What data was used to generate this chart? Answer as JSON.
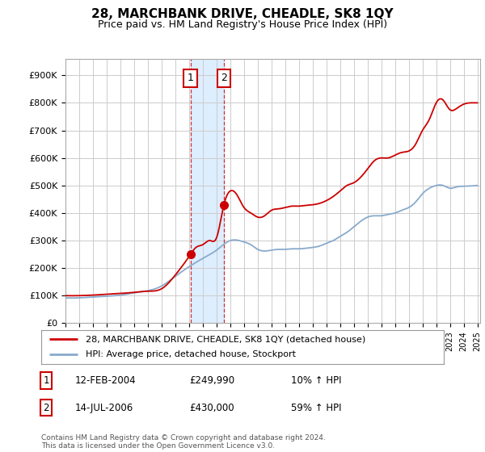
{
  "title": "28, MARCHBANK DRIVE, CHEADLE, SK8 1QY",
  "subtitle": "Price paid vs. HM Land Registry's House Price Index (HPI)",
  "ylabel_ticks": [
    "£0",
    "£100K",
    "£200K",
    "£300K",
    "£400K",
    "£500K",
    "£600K",
    "£700K",
    "£800K",
    "£900K"
  ],
  "ytick_values": [
    0,
    100000,
    200000,
    300000,
    400000,
    500000,
    600000,
    700000,
    800000,
    900000
  ],
  "ylim": [
    0,
    960000
  ],
  "xlim_start": 1995.0,
  "xlim_end": 2025.2,
  "transaction1_x": 2004.11,
  "transaction1_y": 249990,
  "transaction2_x": 2006.54,
  "transaction2_y": 430000,
  "legend_line1": "28, MARCHBANK DRIVE, CHEADLE, SK8 1QY (detached house)",
  "legend_line2": "HPI: Average price, detached house, Stockport",
  "line_color_red": "#cc0000",
  "line_color_blue": "#88aacc",
  "shade_color": "#ddeeff",
  "marker_box_color": "#cc0000",
  "background_color": "#ffffff",
  "grid_color": "#cccccc",
  "red_years": [
    1995,
    1996,
    1997,
    1998,
    1999,
    2000,
    2001,
    2002,
    2003,
    2004.11,
    2004.5,
    2005,
    2005.5,
    2006,
    2006.54,
    2007,
    2007.5,
    2008,
    2008.5,
    2009,
    2009.5,
    2010,
    2010.5,
    2011,
    2011.5,
    2012,
    2012.5,
    2013,
    2013.5,
    2014,
    2014.5,
    2015,
    2015.5,
    2016,
    2016.5,
    2017,
    2017.5,
    2018,
    2018.5,
    2019,
    2019.5,
    2020,
    2020.5,
    2021,
    2021.5,
    2022,
    2022.5,
    2023,
    2023.5,
    2024,
    2024.5,
    2025
  ],
  "red_values": [
    100000,
    100000,
    102000,
    105000,
    108000,
    112000,
    116000,
    125000,
    175000,
    249990,
    275000,
    285000,
    300000,
    310000,
    430000,
    480000,
    465000,
    420000,
    400000,
    385000,
    390000,
    410000,
    415000,
    420000,
    425000,
    425000,
    428000,
    430000,
    435000,
    445000,
    460000,
    480000,
    500000,
    510000,
    530000,
    560000,
    590000,
    600000,
    600000,
    610000,
    620000,
    625000,
    650000,
    700000,
    740000,
    800000,
    810000,
    775000,
    780000,
    795000,
    800000,
    800000
  ],
  "blue_years": [
    1995,
    1996,
    1997,
    1998,
    1999,
    2000,
    2001,
    2002,
    2003,
    2004,
    2005,
    2006,
    2007,
    2008,
    2008.5,
    2009,
    2009.5,
    2010,
    2010.5,
    2011,
    2011.5,
    2012,
    2012.5,
    2013,
    2013.5,
    2014,
    2014.5,
    2015,
    2015.5,
    2016,
    2016.5,
    2017,
    2017.5,
    2018,
    2018.5,
    2019,
    2019.5,
    2020,
    2020.5,
    2021,
    2021.5,
    2022,
    2022.5,
    2023,
    2023.5,
    2024,
    2024.5,
    2025
  ],
  "blue_values": [
    92000,
    92000,
    95000,
    98000,
    102000,
    110000,
    118000,
    135000,
    170000,
    205000,
    235000,
    265000,
    300000,
    295000,
    285000,
    268000,
    262000,
    265000,
    268000,
    268000,
    270000,
    270000,
    272000,
    275000,
    280000,
    290000,
    300000,
    315000,
    330000,
    350000,
    370000,
    385000,
    390000,
    390000,
    395000,
    400000,
    410000,
    420000,
    440000,
    470000,
    490000,
    500000,
    500000,
    490000,
    495000,
    497000,
    498000,
    500000
  ]
}
